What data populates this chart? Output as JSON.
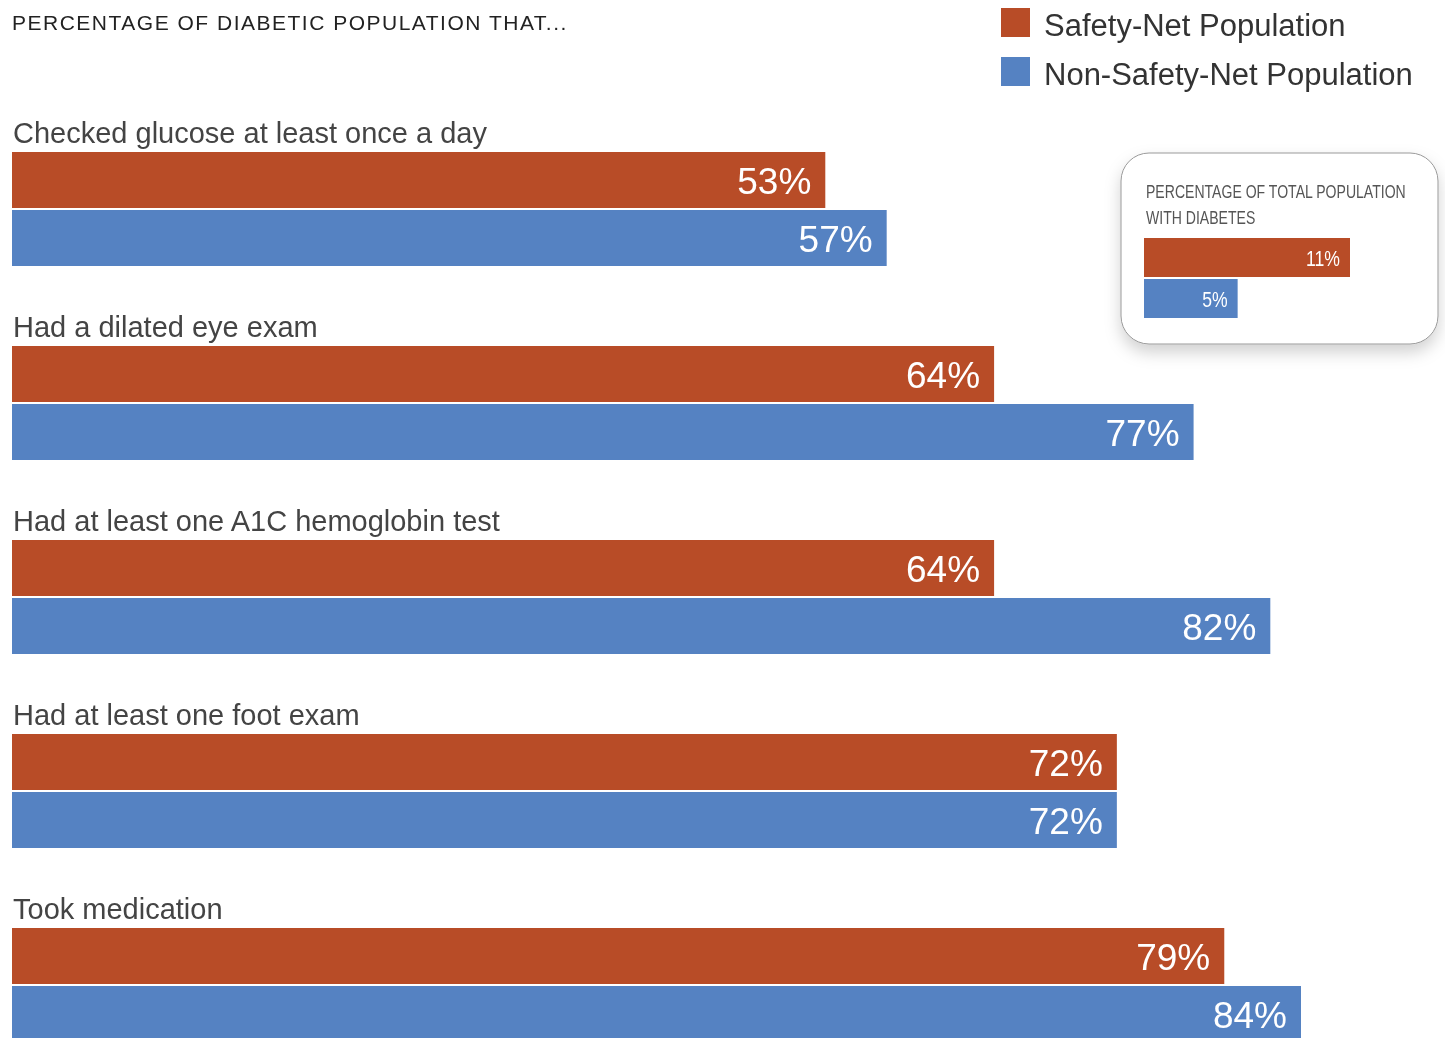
{
  "chart_data": [
    {
      "type": "bar",
      "orientation": "horizontal",
      "title": "PERCENTAGE OF DIABETIC POPULATION THAT...",
      "categories": [
        "Checked glucose at least once a day",
        "Had a dilated eye exam",
        "Had at least one A1C hemoglobin test",
        "Had at least one foot exam",
        "Took medication"
      ],
      "series": [
        {
          "name": "Safety-Net Population",
          "color": "#b84c27",
          "values": [
            53,
            64,
            64,
            72,
            79
          ],
          "value_labels": [
            "53%",
            "64%",
            "64%",
            "72%",
            "79%"
          ]
        },
        {
          "name": "Non-Safety-Net Population",
          "color": "#5582c2",
          "values": [
            57,
            77,
            82,
            72,
            84
          ],
          "value_labels": [
            "57%",
            "77%",
            "82%",
            "72%",
            "84%"
          ]
        }
      ],
      "legend": "top right"
    },
    {
      "type": "bar",
      "orientation": "horizontal",
      "title": "PERCENTAGE OF TOTAL POPULATION WITH DIABETES",
      "categories": [
        null
      ],
      "series": [
        {
          "color": "#b84c27",
          "values": [
            11
          ],
          "value_labels": [
            "11%"
          ]
        },
        {
          "color": "#5582c2",
          "values": [
            5
          ],
          "value_labels": [
            "5%"
          ]
        }
      ]
    }
  ]
}
